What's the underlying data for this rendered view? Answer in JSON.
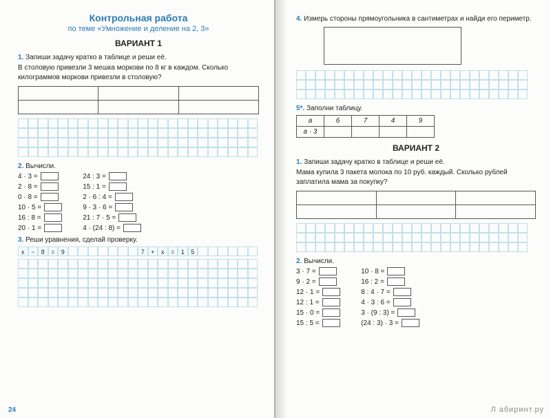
{
  "colors": {
    "accent": "#2a7bb8",
    "grid": "#bfe0ef",
    "border": "#555555",
    "bg": "#fcfcfa"
  },
  "left": {
    "title_main": "Контрольная работа",
    "title_sub": "по теме «Умножение и деление на 2, 3»",
    "variant": "ВАРИАНТ 1",
    "t1": {
      "num": "1.",
      "head": "Запиши задачу кратко в таблице и реши её.",
      "text": "В столовую привезли 3 мешка моркови по 8 кг в каждом. Сколько килограммов моркови привезли в столовую?",
      "table_cols": 3,
      "table_rows": 2,
      "grid_cols": 24,
      "grid_rows": 4
    },
    "t2": {
      "num": "2.",
      "head": "Вычисли.",
      "colA": [
        "4 · 3 =",
        "2 · 8 =",
        "0 · 8 =",
        "10 · 5 =",
        "16 : 8 =",
        "20 · 1 ="
      ],
      "colB": [
        "24 : 3 =",
        "15 : 1 =",
        "2 · 6 : 4 =",
        "9 · 3 · 6 =",
        "21 : 7 · 5 =",
        "4 · (24 : 8) ="
      ]
    },
    "t3": {
      "num": "3.",
      "head": "Реши уравнения, сделай проверку.",
      "eq1": [
        "x",
        "−",
        "8",
        "=",
        "9"
      ],
      "eq2": [
        "7",
        "+",
        "x",
        "=",
        "1",
        "5"
      ],
      "grid_cols": 24,
      "grid_rows": 5
    },
    "page_num": "24"
  },
  "right": {
    "t4": {
      "num": "4.",
      "head": "Измерь стороны прямоугольника в сантиметрах и найди его периметр.",
      "grid_cols": 24,
      "grid_rows": 3
    },
    "t5": {
      "num": "5*.",
      "head": "Заполни таблицу.",
      "header_row": [
        "a",
        "6",
        "7",
        "4",
        "9"
      ],
      "label_row": "a · 3"
    },
    "variant": "ВАРИАНТ 2",
    "t1b": {
      "num": "1.",
      "head": "Запиши задачу кратко в таблице и реши её.",
      "text": "Мама купила 3 пакета молока по 10 руб. каждый. Сколько рублей заплатила мама за покупку?",
      "table_cols": 3,
      "table_rows": 2,
      "grid_cols": 24,
      "grid_rows": 3
    },
    "t2b": {
      "num": "2.",
      "head": "Вычисли.",
      "colA": [
        "3 · 7 =",
        "9 · 2 =",
        "12 · 1 =",
        "12 : 1 =",
        "15 · 0 =",
        "15 : 5 ="
      ],
      "colB": [
        "10 · 8 =",
        "16 : 2 =",
        "8 : 4 · 7 =",
        "4 · 3 : 6 =",
        "3 · (9 : 3) =",
        "(24 : 3) · 3 ="
      ]
    },
    "watermark": "Л абиринт.ру"
  }
}
